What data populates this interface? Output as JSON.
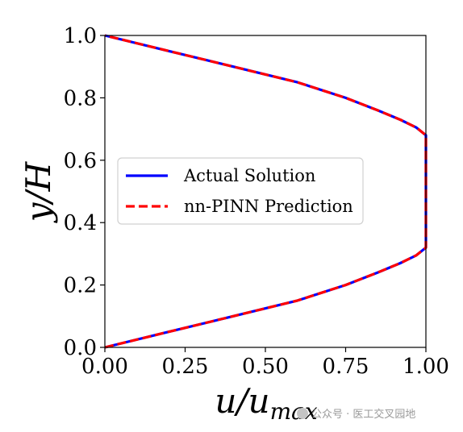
{
  "chart_data": {
    "type": "line",
    "xlabel": "u/u",
    "xlabel_sub": "max",
    "ylabel": "y/H",
    "xlim": [
      0,
      1
    ],
    "ylim": [
      0,
      1
    ],
    "xticks": [
      "0.00",
      "0.25",
      "0.50",
      "0.75",
      "1.00"
    ],
    "yticks": [
      "0.0",
      "0.2",
      "0.4",
      "0.6",
      "0.8",
      "1.0"
    ],
    "grid": false,
    "legend_position": "center-left",
    "series": [
      {
        "name": "Actual Solution",
        "color": "#0000ff",
        "style": "solid",
        "x": [
          0.0,
          0.2,
          0.4,
          0.6,
          0.75,
          0.85,
          0.92,
          0.97,
          1.0,
          1.0,
          1.0,
          0.97,
          0.92,
          0.85,
          0.75,
          0.6,
          0.4,
          0.2,
          0.0
        ],
        "y": [
          0.0,
          0.05,
          0.1,
          0.15,
          0.2,
          0.24,
          0.27,
          0.295,
          0.32,
          0.5,
          0.68,
          0.705,
          0.73,
          0.76,
          0.8,
          0.85,
          0.9,
          0.95,
          1.0
        ]
      },
      {
        "name": "nn-PINN Prediction",
        "color": "#ff0000",
        "style": "dashed",
        "x": [
          0.0,
          0.2,
          0.4,
          0.6,
          0.75,
          0.85,
          0.92,
          0.97,
          1.0,
          1.0,
          1.0,
          0.97,
          0.92,
          0.85,
          0.75,
          0.6,
          0.4,
          0.2,
          0.0
        ],
        "y": [
          0.0,
          0.05,
          0.1,
          0.15,
          0.2,
          0.24,
          0.27,
          0.295,
          0.32,
          0.5,
          0.68,
          0.705,
          0.73,
          0.76,
          0.8,
          0.85,
          0.9,
          0.95,
          1.0
        ]
      }
    ]
  },
  "watermark": {
    "text": "公众号 · 医工交叉园地",
    "icon": "wechat-icon"
  }
}
